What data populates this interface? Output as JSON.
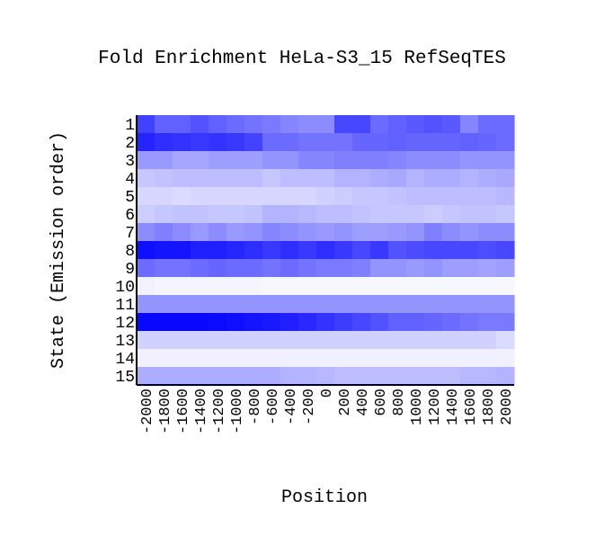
{
  "chart_data": {
    "type": "heatmap",
    "title": "Fold Enrichment HeLa-S3_15 RefSeqTES",
    "xlabel": "Position",
    "ylabel": "State (Emission order)",
    "x_categories": [
      "-2000",
      "-1800",
      "-1600",
      "-1400",
      "-1200",
      "-1000",
      "-800",
      "-600",
      "-400",
      "-200",
      "0",
      "200",
      "400",
      "600",
      "800",
      "1000",
      "1200",
      "1400",
      "1600",
      "1800",
      "2000"
    ],
    "y_categories": [
      "1",
      "2",
      "3",
      "4",
      "5",
      "6",
      "7",
      "8",
      "9",
      "10",
      "11",
      "12",
      "13",
      "14",
      "15"
    ],
    "value_scale": "relative intensity 0 (white) to 1 (full blue)",
    "values": [
      [
        0.75,
        0.62,
        0.62,
        0.68,
        0.62,
        0.58,
        0.55,
        0.52,
        0.48,
        0.45,
        0.45,
        0.72,
        0.72,
        0.58,
        0.62,
        0.65,
        0.68,
        0.65,
        0.48,
        0.58,
        0.58
      ],
      [
        0.86,
        0.82,
        0.8,
        0.78,
        0.8,
        0.78,
        0.74,
        0.58,
        0.58,
        0.55,
        0.55,
        0.55,
        0.6,
        0.6,
        0.62,
        0.6,
        0.6,
        0.6,
        0.62,
        0.6,
        0.58
      ],
      [
        0.4,
        0.4,
        0.35,
        0.35,
        0.38,
        0.38,
        0.38,
        0.42,
        0.42,
        0.48,
        0.48,
        0.5,
        0.5,
        0.5,
        0.48,
        0.45,
        0.45,
        0.45,
        0.42,
        0.42,
        0.42
      ],
      [
        0.22,
        0.24,
        0.26,
        0.26,
        0.26,
        0.26,
        0.26,
        0.22,
        0.26,
        0.26,
        0.26,
        0.3,
        0.3,
        0.32,
        0.34,
        0.3,
        0.32,
        0.32,
        0.3,
        0.32,
        0.34
      ],
      [
        0.16,
        0.16,
        0.14,
        0.16,
        0.16,
        0.16,
        0.16,
        0.16,
        0.16,
        0.16,
        0.18,
        0.2,
        0.22,
        0.22,
        0.24,
        0.26,
        0.26,
        0.26,
        0.26,
        0.26,
        0.28
      ],
      [
        0.2,
        0.22,
        0.24,
        0.24,
        0.22,
        0.22,
        0.24,
        0.3,
        0.3,
        0.28,
        0.26,
        0.26,
        0.24,
        0.22,
        0.22,
        0.22,
        0.2,
        0.22,
        0.24,
        0.24,
        0.22
      ],
      [
        0.45,
        0.5,
        0.45,
        0.4,
        0.45,
        0.4,
        0.42,
        0.48,
        0.45,
        0.42,
        0.4,
        0.42,
        0.38,
        0.38,
        0.4,
        0.42,
        0.5,
        0.45,
        0.42,
        0.45,
        0.45
      ],
      [
        0.94,
        0.92,
        0.92,
        0.88,
        0.88,
        0.85,
        0.82,
        0.78,
        0.82,
        0.78,
        0.82,
        0.78,
        0.72,
        0.78,
        0.68,
        0.7,
        0.72,
        0.72,
        0.72,
        0.7,
        0.72
      ],
      [
        0.58,
        0.55,
        0.55,
        0.58,
        0.6,
        0.58,
        0.58,
        0.55,
        0.58,
        0.55,
        0.52,
        0.52,
        0.5,
        0.42,
        0.42,
        0.4,
        0.42,
        0.38,
        0.38,
        0.36,
        0.38
      ],
      [
        0.05,
        0.04,
        0.04,
        0.04,
        0.04,
        0.04,
        0.04,
        0.03,
        0.03,
        0.03,
        0.03,
        0.03,
        0.03,
        0.03,
        0.03,
        0.03,
        0.03,
        0.03,
        0.03,
        0.03,
        0.03
      ],
      [
        0.42,
        0.42,
        0.42,
        0.42,
        0.42,
        0.42,
        0.42,
        0.42,
        0.42,
        0.42,
        0.42,
        0.42,
        0.42,
        0.42,
        0.42,
        0.42,
        0.42,
        0.42,
        0.42,
        0.42,
        0.42
      ],
      [
        0.97,
        0.97,
        0.97,
        0.97,
        0.96,
        0.94,
        0.92,
        0.9,
        0.88,
        0.84,
        0.8,
        0.76,
        0.72,
        0.68,
        0.62,
        0.62,
        0.6,
        0.58,
        0.55,
        0.52,
        0.52
      ],
      [
        0.18,
        0.18,
        0.18,
        0.18,
        0.18,
        0.18,
        0.18,
        0.18,
        0.18,
        0.18,
        0.18,
        0.18,
        0.18,
        0.18,
        0.18,
        0.18,
        0.18,
        0.18,
        0.18,
        0.18,
        0.14
      ],
      [
        0.06,
        0.06,
        0.06,
        0.06,
        0.06,
        0.06,
        0.06,
        0.06,
        0.06,
        0.06,
        0.06,
        0.06,
        0.06,
        0.06,
        0.06,
        0.06,
        0.06,
        0.06,
        0.06,
        0.06,
        0.06
      ],
      [
        0.32,
        0.32,
        0.32,
        0.32,
        0.32,
        0.32,
        0.32,
        0.32,
        0.3,
        0.3,
        0.28,
        0.26,
        0.26,
        0.26,
        0.26,
        0.26,
        0.26,
        0.26,
        0.28,
        0.28,
        0.3
      ]
    ],
    "colors": {
      "low": "#ffffff",
      "high": "#0000ff",
      "axis": "#000000",
      "text": "#000000"
    }
  }
}
